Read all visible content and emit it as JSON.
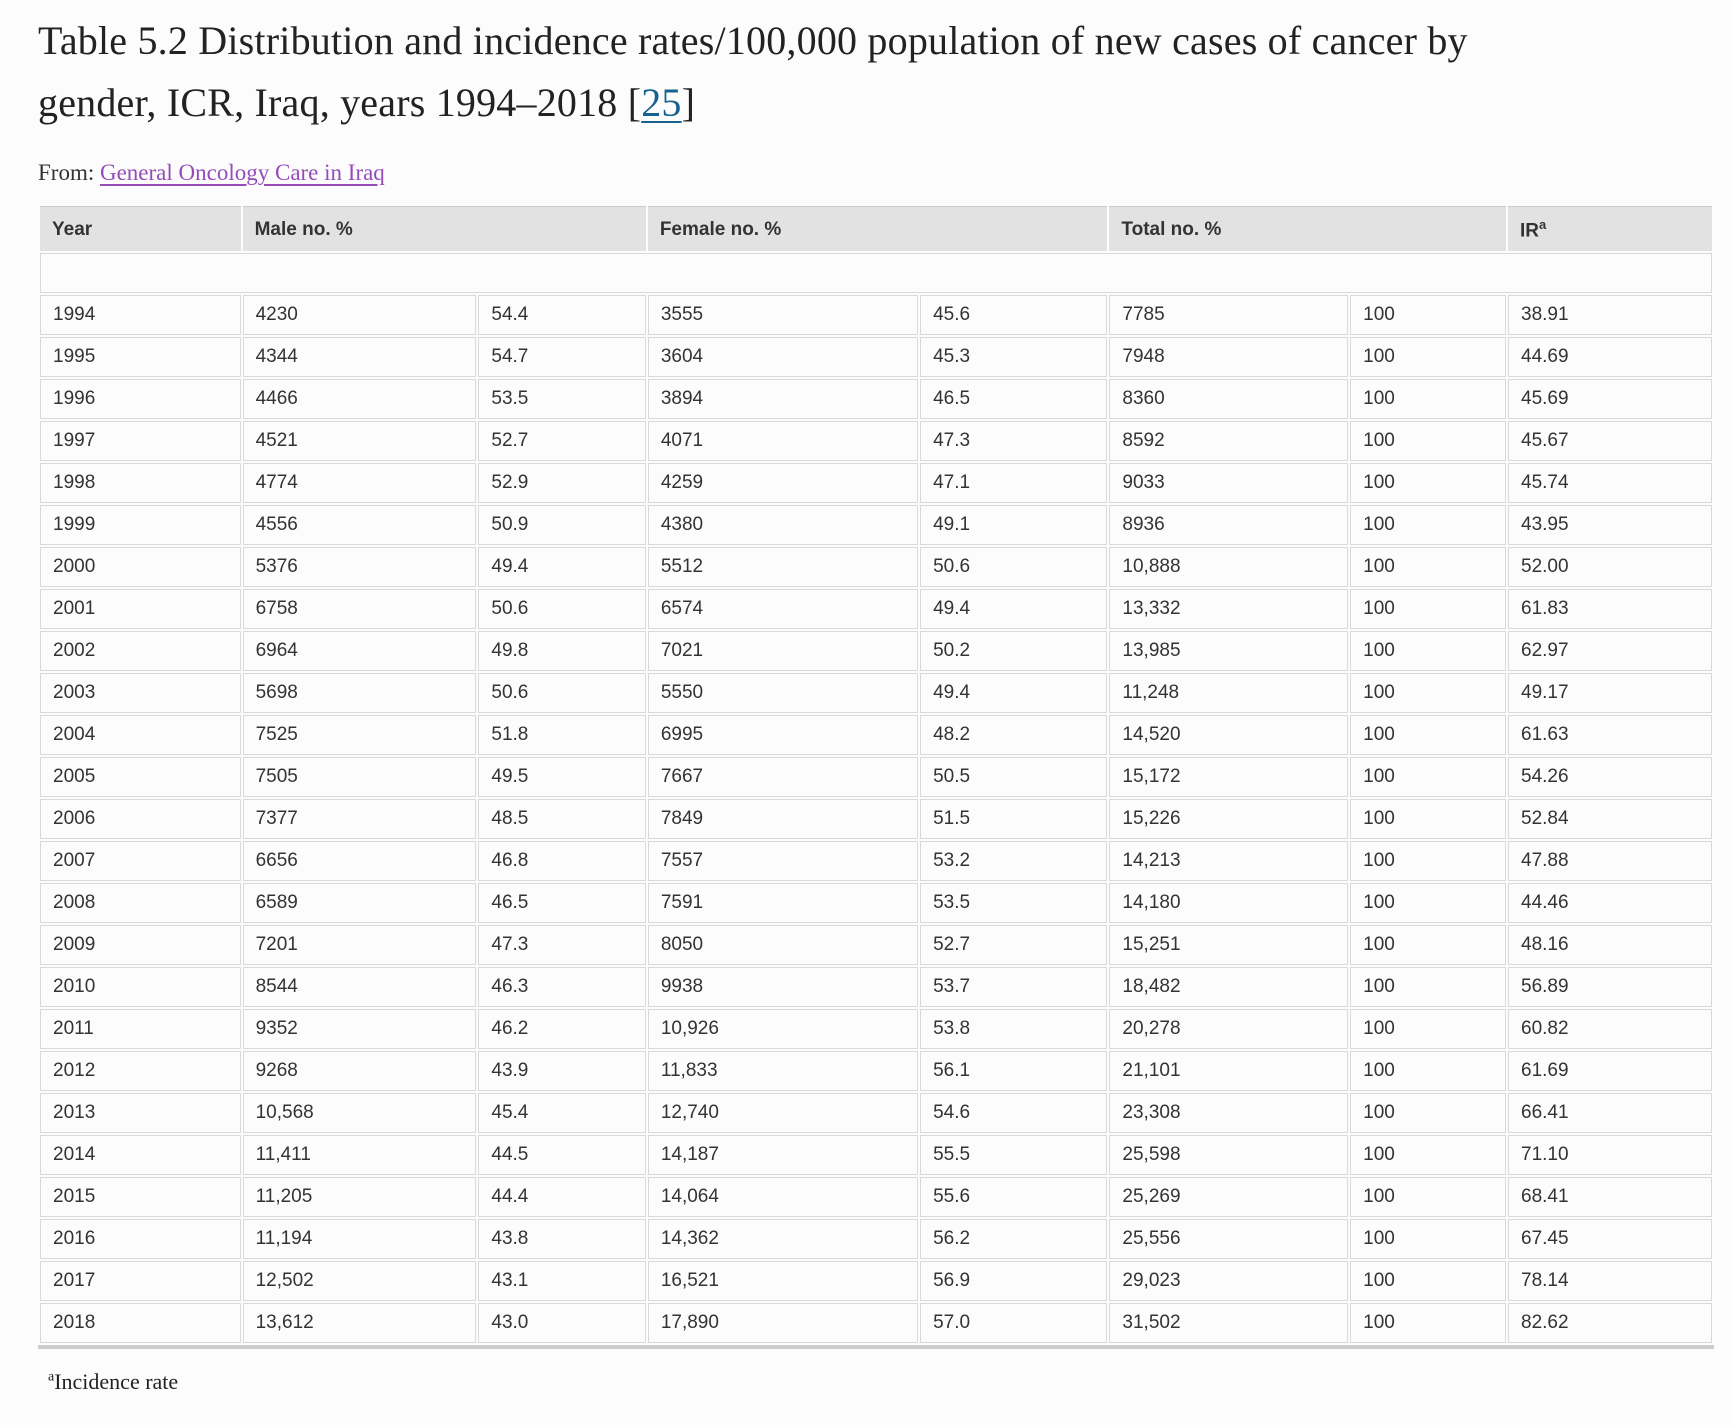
{
  "title": {
    "text": "Table 5.2 Distribution and incidence rates/100,000 population of new cases of cancer by gender, ICR, Iraq, years 1994–2018 ",
    "citation_open": "[",
    "citation": "25",
    "citation_close": "]"
  },
  "source": {
    "label": "From: ",
    "link": "General Oncology Care in Iraq"
  },
  "table": {
    "headers": [
      {
        "label": "Year",
        "colspan": 1
      },
      {
        "label": "Male no. %",
        "colspan": 2
      },
      {
        "label": "Female no. %",
        "colspan": 2
      },
      {
        "label": "Total no. %",
        "colspan": 2
      },
      {
        "label": "IR",
        "sup": "a",
        "colspan": 1
      }
    ],
    "column_keys": [
      "year",
      "male-no",
      "male-pct",
      "female-no",
      "female-pct",
      "total-no",
      "total-pct",
      "ir"
    ],
    "rows": [
      [
        "1994",
        "4230",
        "54.4",
        "3555",
        "45.6",
        "7785",
        "100",
        "38.91"
      ],
      [
        "1995",
        "4344",
        "54.7",
        "3604",
        "45.3",
        "7948",
        "100",
        "44.69"
      ],
      [
        "1996",
        "4466",
        "53.5",
        "3894",
        "46.5",
        "8360",
        "100",
        "45.69"
      ],
      [
        "1997",
        "4521",
        "52.7",
        "4071",
        "47.3",
        "8592",
        "100",
        "45.67"
      ],
      [
        "1998",
        "4774",
        "52.9",
        "4259",
        "47.1",
        "9033",
        "100",
        "45.74"
      ],
      [
        "1999",
        "4556",
        "50.9",
        "4380",
        "49.1",
        "8936",
        "100",
        "43.95"
      ],
      [
        "2000",
        "5376",
        "49.4",
        "5512",
        "50.6",
        "10,888",
        "100",
        "52.00"
      ],
      [
        "2001",
        "6758",
        "50.6",
        "6574",
        "49.4",
        "13,332",
        "100",
        "61.83"
      ],
      [
        "2002",
        "6964",
        "49.8",
        "7021",
        "50.2",
        "13,985",
        "100",
        "62.97"
      ],
      [
        "2003",
        "5698",
        "50.6",
        "5550",
        "49.4",
        "11,248",
        "100",
        "49.17"
      ],
      [
        "2004",
        "7525",
        "51.8",
        "6995",
        "48.2",
        "14,520",
        "100",
        "61.63"
      ],
      [
        "2005",
        "7505",
        "49.5",
        "7667",
        "50.5",
        "15,172",
        "100",
        "54.26"
      ],
      [
        "2006",
        "7377",
        "48.5",
        "7849",
        "51.5",
        "15,226",
        "100",
        "52.84"
      ],
      [
        "2007",
        "6656",
        "46.8",
        "7557",
        "53.2",
        "14,213",
        "100",
        "47.88"
      ],
      [
        "2008",
        "6589",
        "46.5",
        "7591",
        "53.5",
        "14,180",
        "100",
        "44.46"
      ],
      [
        "2009",
        "7201",
        "47.3",
        "8050",
        "52.7",
        "15,251",
        "100",
        "48.16"
      ],
      [
        "2010",
        "8544",
        "46.3",
        "9938",
        "53.7",
        "18,482",
        "100",
        "56.89"
      ],
      [
        "2011",
        "9352",
        "46.2",
        "10,926",
        "53.8",
        "20,278",
        "100",
        "60.82"
      ],
      [
        "2012",
        "9268",
        "43.9",
        "11,833",
        "56.1",
        "21,101",
        "100",
        "61.69"
      ],
      [
        "2013",
        "10,568",
        "45.4",
        "12,740",
        "54.6",
        "23,308",
        "100",
        "66.41"
      ],
      [
        "2014",
        "11,411",
        "44.5",
        "14,187",
        "55.5",
        "25,598",
        "100",
        "71.10"
      ],
      [
        "2015",
        "11,205",
        "44.4",
        "14,064",
        "55.6",
        "25,269",
        "100",
        "68.41"
      ],
      [
        "2016",
        "11,194",
        "43.8",
        "14,362",
        "56.2",
        "25,556",
        "100",
        "67.45"
      ],
      [
        "2017",
        "12,502",
        "43.1",
        "16,521",
        "56.9",
        "29,023",
        "100",
        "78.14"
      ],
      [
        "2018",
        "13,612",
        "43.0",
        "17,890",
        "57.0",
        "31,502",
        "100",
        "82.62"
      ]
    ]
  },
  "footnote": {
    "sup": "a",
    "text": "Incidence rate"
  }
}
